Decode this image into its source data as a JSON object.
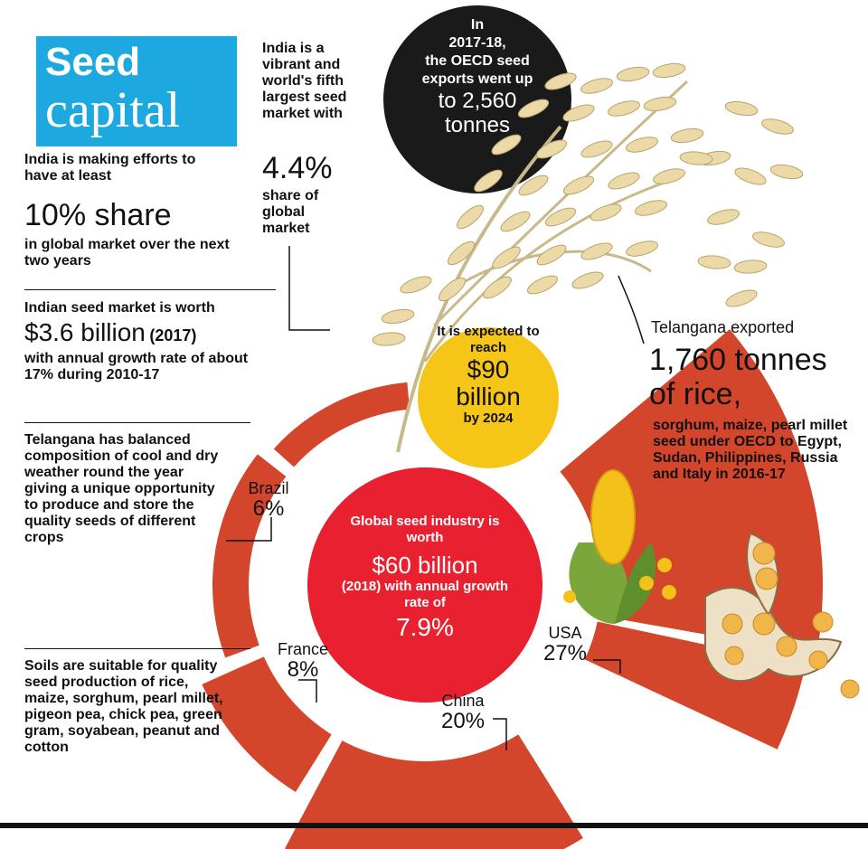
{
  "title": {
    "line1": "Seed",
    "line2": "capital"
  },
  "left": {
    "block1": {
      "pre": "India is making efforts to have at least",
      "highlight": "10% share",
      "post": "in global market over the next two years"
    },
    "block2": {
      "pre": "Indian seed market is worth",
      "highlight": "$3.6 billion",
      "year": "(2017)",
      "post": "with annual growth rate of about 17% during 2010-17"
    },
    "block3": "Telangana has balanced composition of cool and dry weather round the year giving a unique opportunity to produce and store the quality seeds of different crops",
    "block4": "Soils are suitable for quality seed production of rice, maize, sorghum, pearl millet, pigeon pea, chick pea, green gram, soyabean, peanut and cotton"
  },
  "india_share": {
    "pre": "India is a vibrant and world's fifth largest seed market with",
    "highlight": "4.4%",
    "post": "share of global market"
  },
  "oecd": {
    "line1": "In",
    "line2": "2017-18,",
    "line3": "the OECD seed",
    "line4": "exports went up",
    "line5": "to 2,560",
    "line6": "tonnes"
  },
  "expected": {
    "pre": "It is expected to reach",
    "value1": "$90",
    "value2": "billion",
    "post": "by 2024"
  },
  "global": {
    "pre": "Global seed industry is worth",
    "value": "$60 billion",
    "mid": "(2018) with annual growth rate of",
    "rate": "7.9%"
  },
  "telangana": {
    "pre": "Telangana exported",
    "highlight1": "1,760 tonnes",
    "highlight2": "of rice,",
    "post": "sorghum, maize, pearl millet seed under OECD to Egypt, Sudan, Philippines, Russia and Italy in 2016-17"
  },
  "chart_data": {
    "type": "pie",
    "labels": [
      "Brazil",
      "France",
      "China",
      "USA"
    ],
    "values": [
      6,
      8,
      20,
      27
    ],
    "value_labels": [
      "6%",
      "8%",
      "20%",
      "27%"
    ]
  },
  "colors": {
    "ring": "#d3462c",
    "red": "#e8202f",
    "yellow": "#f5c518",
    "black": "#1a1a1a",
    "blue": "#1ea8e0",
    "grain": "#ecd9a8"
  }
}
